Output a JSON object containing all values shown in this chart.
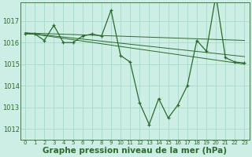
{
  "bg_color": "#cceee4",
  "grid_color": "#aaddcc",
  "line_color": "#2d6a2d",
  "marker_color": "#2d6a2d",
  "xlabel": "Graphe pression niveau de la mer (hPa)",
  "xlabel_fontsize": 7.5,
  "ylim": [
    1011.5,
    1017.85
  ],
  "yticks": [
    1012,
    1013,
    1014,
    1015,
    1016,
    1017
  ],
  "xtick_labels": [
    "0",
    "1",
    "2",
    "3",
    "4",
    "5",
    "6",
    "7",
    "8",
    "9",
    "10",
    "11",
    "12",
    "13",
    "14",
    "15",
    "16",
    "17",
    "18",
    "19",
    "20",
    "21",
    "22",
    "23"
  ],
  "xticks": [
    0,
    1,
    2,
    3,
    4,
    5,
    6,
    7,
    8,
    9,
    10,
    11,
    12,
    13,
    14,
    15,
    16,
    17,
    18,
    19,
    20,
    21,
    22,
    23
  ],
  "main_series": {
    "x": [
      0,
      1,
      2,
      3,
      4,
      5,
      6,
      7,
      8,
      9,
      10,
      11,
      12,
      13,
      14,
      15,
      16,
      17,
      18,
      19,
      20,
      21,
      22,
      23
    ],
    "y": [
      1016.4,
      1016.4,
      1016.1,
      1016.8,
      1016.0,
      1016.0,
      1016.3,
      1016.4,
      1016.3,
      1017.5,
      1015.4,
      1015.1,
      1013.2,
      1012.2,
      1013.4,
      1012.5,
      1013.1,
      1014.0,
      1016.1,
      1015.6,
      1018.2,
      1015.3,
      1015.1,
      1015.05
    ]
  },
  "trend_lines": [
    {
      "x": [
        0,
        23
      ],
      "y": [
        1016.45,
        1016.1
      ]
    },
    {
      "x": [
        0,
        23
      ],
      "y": [
        1016.45,
        1015.35
      ]
    },
    {
      "x": [
        0,
        23
      ],
      "y": [
        1016.45,
        1015.0
      ]
    }
  ]
}
